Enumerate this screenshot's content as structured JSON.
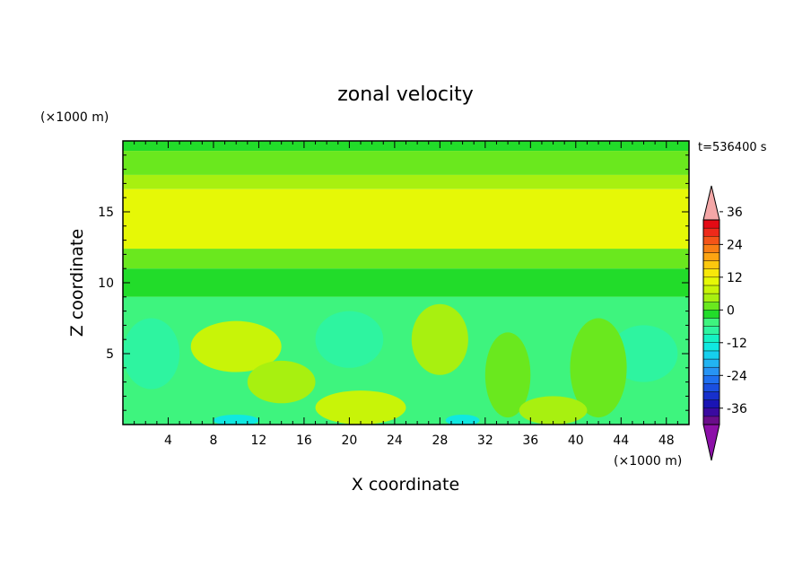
{
  "chart_data": {
    "type": "heatmap",
    "title": "zonal velocity",
    "time_label": "t=536400 s",
    "xlabel": "X coordinate",
    "ylabel": "Z coordinate",
    "x_unit": "(×1000 m)",
    "z_unit": "(×1000 m)",
    "xlim": [
      0,
      50
    ],
    "zlim": [
      0,
      20
    ],
    "x_ticks": [
      4,
      8,
      12,
      16,
      20,
      24,
      28,
      32,
      36,
      40,
      44,
      48
    ],
    "z_ticks": [
      5,
      10,
      15
    ],
    "colorbar": {
      "levels": [
        -42,
        -39,
        -36,
        -33,
        -30,
        -27,
        -24,
        -21,
        -18,
        -15,
        -12,
        -9,
        -6,
        -3,
        0,
        3,
        6,
        9,
        12,
        15,
        18,
        21,
        24,
        27,
        30,
        33,
        36,
        39,
        42
      ],
      "tick_labels": [
        36,
        24,
        12,
        0,
        -12,
        -24,
        -36
      ],
      "colors": [
        "#6a0d8a",
        "#3a0aa0",
        "#1a14b4",
        "#1730cc",
        "#1a4fe0",
        "#1f70f0",
        "#2794f4",
        "#22b4f2",
        "#16d0ee",
        "#10e8e0",
        "#14f2c4",
        "#2ef4a0",
        "#3ef47e",
        "#22dc2a",
        "#6ae81e",
        "#a8f010",
        "#c8f408",
        "#e6f806",
        "#f8e80a",
        "#fcc80e",
        "#fca412",
        "#f87e14",
        "#f45418",
        "#ee2a1a",
        "#e40a14"
      ],
      "over_color": "#f4a7a7",
      "under_color": "#8c10a8"
    },
    "field_bands": [
      {
        "z_range": [
          19.3,
          20
        ],
        "value": -3
      },
      {
        "z_range": [
          17.6,
          19.3
        ],
        "value": 0
      },
      {
        "z_range": [
          16.6,
          17.6
        ],
        "value": 5
      },
      {
        "z_range": [
          12.4,
          16.6
        ],
        "value": 9
      },
      {
        "z_range": [
          11.0,
          12.4
        ],
        "value": 2
      },
      {
        "z_range": [
          9.0,
          11.0
        ],
        "value": -3
      },
      {
        "z_range": [
          0,
          9.0
        ],
        "value": -6
      }
    ],
    "features": [
      {
        "x": 10,
        "z": 5.5,
        "rx": 4,
        "rz": 1.8,
        "value": 6
      },
      {
        "x": 28,
        "z": 6,
        "rx": 2.5,
        "rz": 2.5,
        "value": 3
      },
      {
        "x": 20,
        "z": 6,
        "rx": 3,
        "rz": 2,
        "value": -9
      },
      {
        "x": 46,
        "z": 5,
        "rx": 3,
        "rz": 2,
        "value": -9
      },
      {
        "x": 2.5,
        "z": 5,
        "rx": 2.5,
        "rz": 2.5,
        "value": -9
      },
      {
        "x": 21,
        "z": 1.2,
        "rx": 4,
        "rz": 1.2,
        "value": 6
      },
      {
        "x": 10,
        "z": 0.3,
        "rx": 2,
        "rz": 0.4,
        "value": -15
      },
      {
        "x": 30,
        "z": 0.3,
        "rx": 1.5,
        "rz": 0.4,
        "value": -15
      },
      {
        "x": 34,
        "z": 3.5,
        "rx": 2,
        "rz": 3,
        "value": 0
      },
      {
        "x": 42,
        "z": 4,
        "rx": 2.5,
        "rz": 3.5,
        "value": 0
      },
      {
        "x": 14,
        "z": 3,
        "rx": 3,
        "rz": 1.5,
        "value": 3
      },
      {
        "x": 38,
        "z": 1.0,
        "rx": 3,
        "rz": 1,
        "value": 4
      }
    ]
  }
}
